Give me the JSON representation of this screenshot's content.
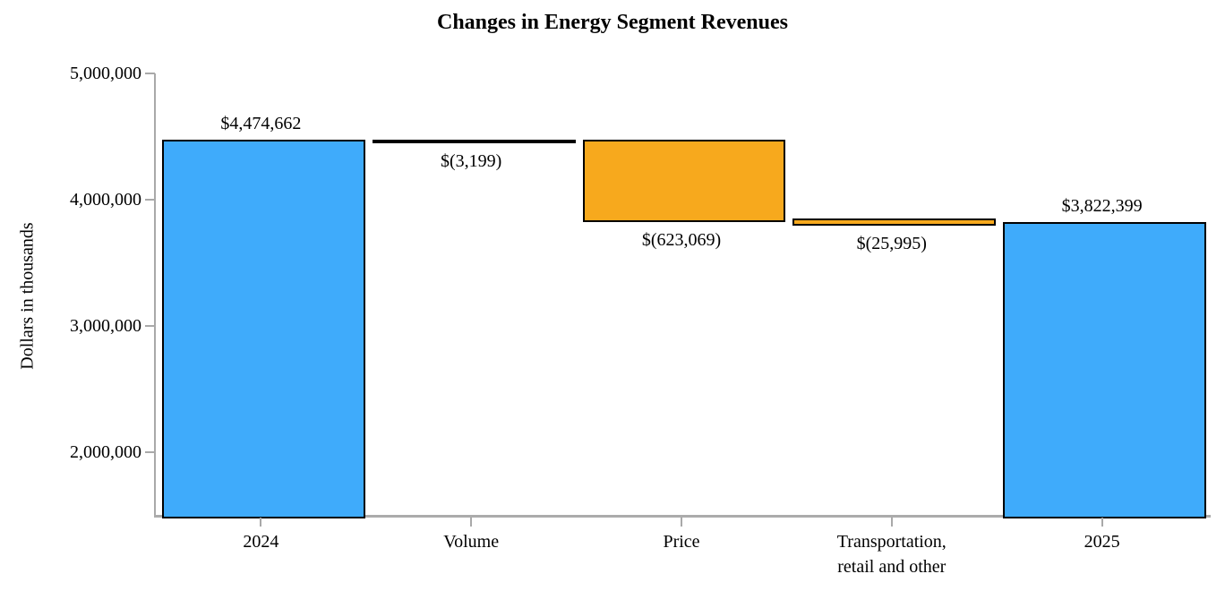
{
  "page": {
    "background": "#ffffff"
  },
  "chart_data": {
    "type": "waterfall",
    "title": "Changes in Energy Segment Revenues",
    "xlabel": "",
    "ylabel": "Dollars in thousands",
    "ylim": [
      1500000,
      5000000
    ],
    "grid": false,
    "legend": "none",
    "y_ticks": [
      {
        "value": 5000000,
        "label": "5,000,000"
      },
      {
        "value": 4000000,
        "label": "4,000,000"
      },
      {
        "value": 3000000,
        "label": "3,000,000"
      },
      {
        "value": 2000000,
        "label": "2,000,000"
      }
    ],
    "categories": [
      "2024",
      "Volume",
      "Price",
      "Transportation, retail and other",
      "2025"
    ],
    "bars": [
      {
        "category_lines": [
          "2024"
        ],
        "kind": "total",
        "value": 4474662,
        "start": 1500000,
        "end": 4474662,
        "label": "$4,474,662",
        "label_position": "above",
        "color": "#3fabfb"
      },
      {
        "category_lines": [
          "Volume"
        ],
        "kind": "decrease",
        "value": -3199,
        "start": 4474662,
        "end": 4471463,
        "label": "$(3,199)",
        "label_position": "below",
        "color": "#f7a91d"
      },
      {
        "category_lines": [
          "Price"
        ],
        "kind": "decrease",
        "value": -623069,
        "start": 4471463,
        "end": 3848394,
        "label": "$(623,069)",
        "label_position": "below",
        "color": "#f7a91d"
      },
      {
        "category_lines": [
          "Transportation,",
          "retail and other"
        ],
        "kind": "decrease",
        "value": -25995,
        "start": 3848394,
        "end": 3822399,
        "label": "$(25,995)",
        "label_position": "below",
        "color": "#f7a91d"
      },
      {
        "category_lines": [
          "2025"
        ],
        "kind": "total",
        "value": 3822399,
        "start": 1500000,
        "end": 3822399,
        "label": "$3,822,399",
        "label_position": "above",
        "color": "#3fabfb"
      }
    ],
    "colors": {
      "total_bar": "#3fabfb",
      "change_bar": "#f7a91d",
      "bar_border": "#000000",
      "axis": "#a9a9a9",
      "text": "#000000"
    }
  }
}
